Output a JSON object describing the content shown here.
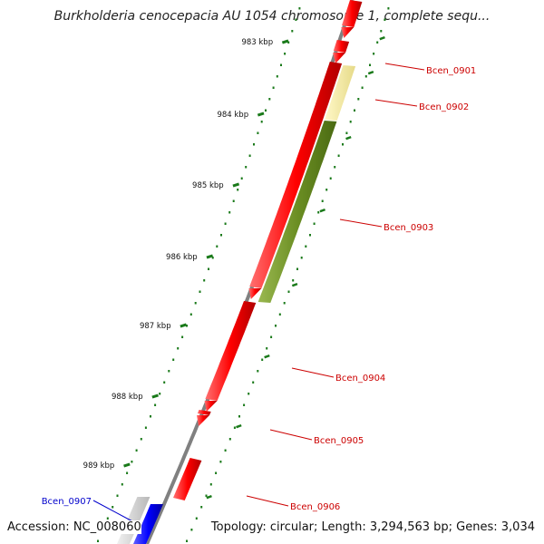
{
  "header": {
    "title": "Burkholderia cenocepacia AU 1054 chromosome 1, complete sequ..."
  },
  "footer": {
    "accession": "Accession: NC_008060",
    "topology": "Topology: circular; Length: 3,294,563 bp; Genes: 3,034"
  },
  "colors": {
    "forward_gene": "#ff0000",
    "forward_gene_alt": "#0000ff",
    "reverse_gene_light": "#f0e6a0",
    "reverse_gene_dark": "#6b8e23",
    "backbone": "#808080",
    "tick": "#1a7a1a",
    "label_red": "#cc0000",
    "label_blue": "#0000cc"
  },
  "ticks": [
    "983 kbp",
    "984 kbp",
    "985 kbp",
    "986 kbp",
    "987 kbp",
    "988 kbp",
    "989 kbp"
  ],
  "gene_labels": [
    {
      "id": "Bcen_0901",
      "color": "red"
    },
    {
      "id": "Bcen_0902",
      "color": "red"
    },
    {
      "id": "Bcen_0903",
      "color": "red"
    },
    {
      "id": "Bcen_0904",
      "color": "red"
    },
    {
      "id": "Bcen_0905",
      "color": "red"
    },
    {
      "id": "Bcen_0906",
      "color": "red"
    },
    {
      "id": "Bcen_0907",
      "color": "blue"
    }
  ]
}
